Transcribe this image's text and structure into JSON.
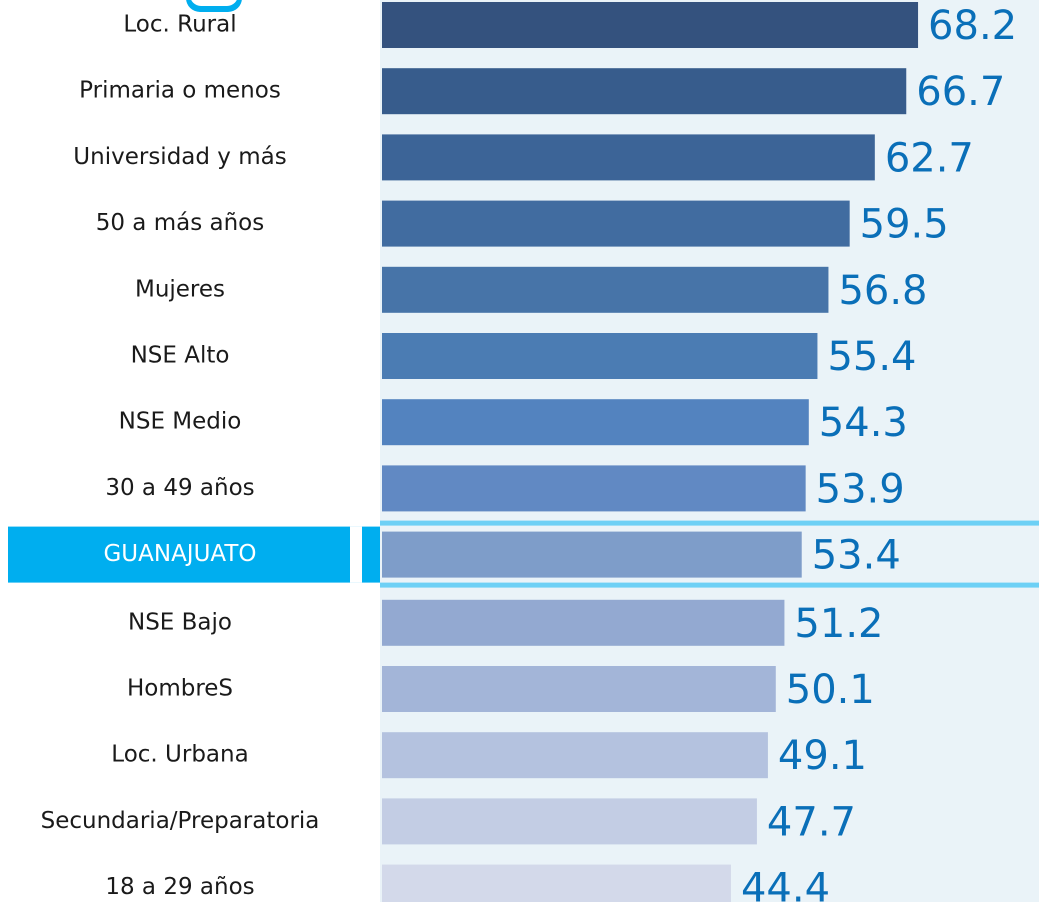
{
  "chart_data": {
    "type": "bar",
    "orientation": "horizontal",
    "categories": [
      "Loc. Rural",
      "Primaria o menos",
      "Universidad y más",
      "50 a más años",
      "Mujeres",
      "NSE Alto",
      "NSE Medio",
      "30 a 49 años",
      "GUANAJUATO",
      "NSE Bajo",
      "HombreS",
      "Loc. Urbana",
      "Secundaria/Preparatoria",
      "18 a 29 años"
    ],
    "values": [
      68.2,
      66.7,
      62.7,
      59.5,
      56.8,
      55.4,
      54.3,
      53.9,
      53.4,
      51.2,
      50.1,
      49.1,
      47.7,
      44.4
    ],
    "colors": [
      "#34527e",
      "#375c8c",
      "#3c6497",
      "#416ca0",
      "#4774a8",
      "#4b7cb3",
      "#5383bf",
      "#6189c3",
      "#7e9dc9",
      "#93a9d1",
      "#a3b5d8",
      "#b4c2df",
      "#c3cde4",
      "#d3d9ea"
    ],
    "highlight": 8
  }
}
